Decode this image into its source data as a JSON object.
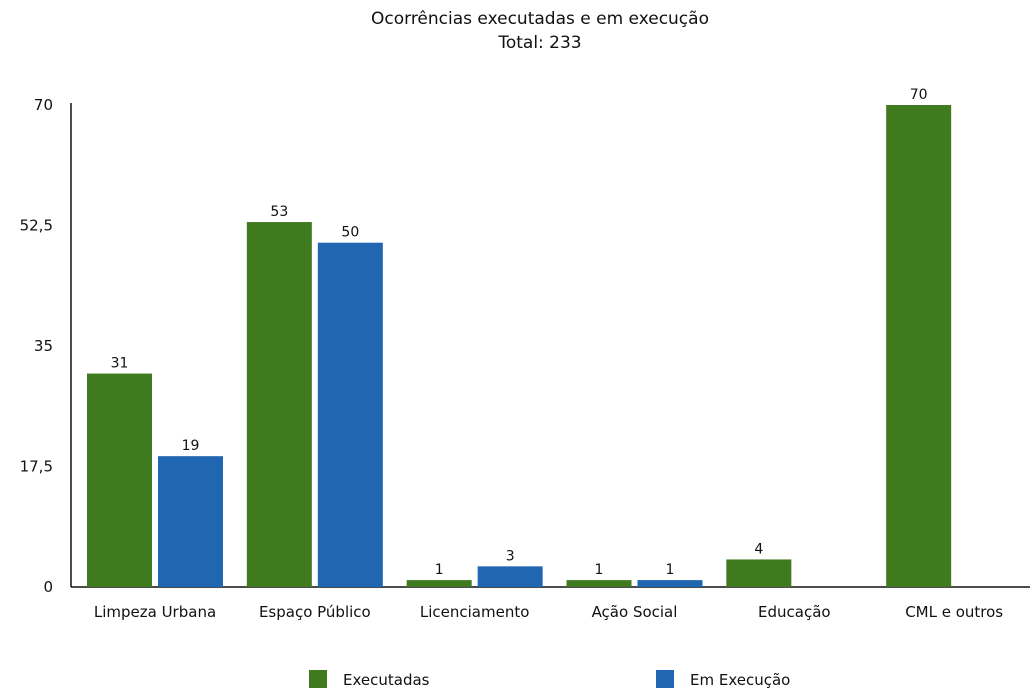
{
  "chart_data": {
    "type": "bar",
    "title": "Ocorrências executadas e em execução",
    "subtitle": "Total: 233",
    "categories": [
      "Limpeza Urbana",
      "Espaço Público",
      "Licenciamento",
      "Ação Social",
      "Educação",
      "CML e outros"
    ],
    "series": [
      {
        "name": "Executadas",
        "values": [
          31,
          53,
          1,
          1,
          4,
          70
        ],
        "color": "#3f7a1e"
      },
      {
        "name": "Em Execução",
        "values": [
          19,
          50,
          3,
          1,
          null,
          null
        ],
        "color": "#2166b0"
      }
    ],
    "ylim": [
      0,
      70
    ],
    "yticks": [
      "0",
      "17,5",
      "35",
      "52,5",
      "70"
    ],
    "grid": false,
    "legend": "bottom"
  }
}
